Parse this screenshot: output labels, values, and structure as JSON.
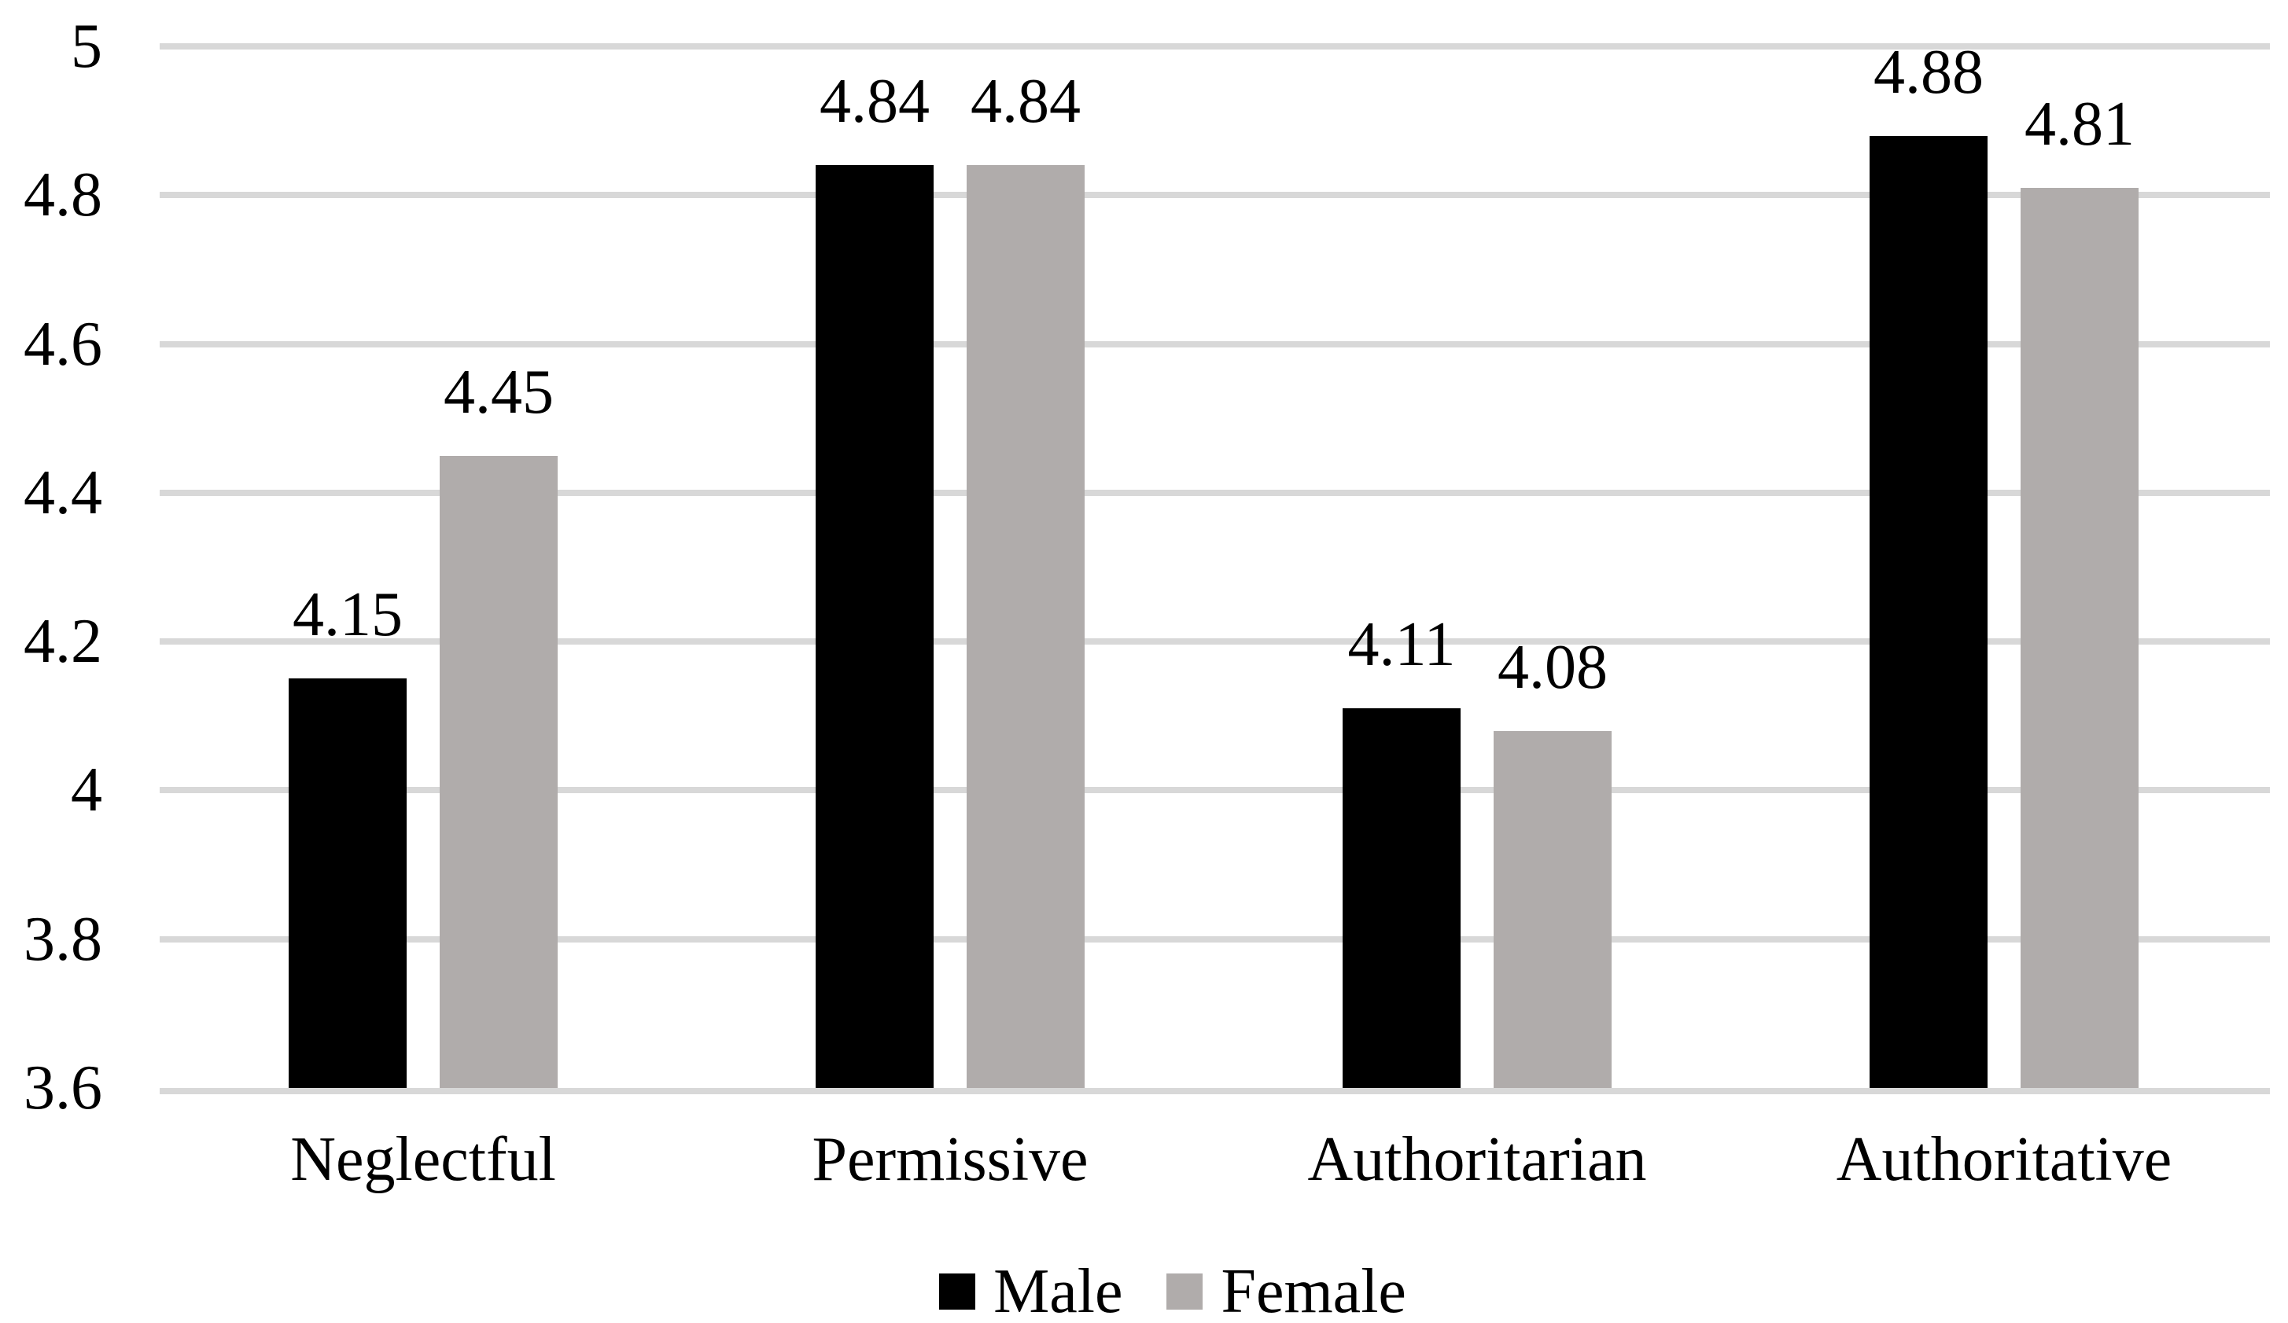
{
  "chart_data": {
    "type": "bar",
    "title": "",
    "xlabel": "",
    "ylabel": "",
    "categories": [
      "Neglectful",
      "Permissive",
      "Authoritarian",
      "Authoritative"
    ],
    "series": [
      {
        "name": "Male",
        "color": "#000000",
        "values": [
          4.15,
          4.84,
          4.11,
          4.88
        ],
        "labels": [
          "4.15",
          "4.84",
          "4.11",
          "4.88"
        ]
      },
      {
        "name": "Female",
        "color": "#b0acab",
        "values": [
          4.45,
          4.84,
          4.08,
          4.81
        ],
        "labels": [
          "4.45",
          "4.84",
          "4.08",
          "4.81"
        ]
      }
    ],
    "y_axis": {
      "min": 3.6,
      "max": 5.0,
      "step": 0.2,
      "ticks": [
        {
          "label": "5",
          "value": 5.0
        },
        {
          "label": "4.8",
          "value": 4.8
        },
        {
          "label": "4.6",
          "value": 4.6
        },
        {
          "label": "4.4",
          "value": 4.4
        },
        {
          "label": "4.2",
          "value": 4.2
        },
        {
          "label": "4",
          "value": 4.0
        },
        {
          "label": "3.8",
          "value": 3.8
        },
        {
          "label": "3.6",
          "value": 3.6
        }
      ]
    },
    "ylim": [
      3.6,
      5.0
    ],
    "grid": true,
    "gridline_color": "#d8d8d8",
    "background_color": "#ffffff",
    "text_color": "#000000",
    "legend": {
      "position": "bottom",
      "entries": [
        "Male",
        "Female"
      ]
    }
  }
}
